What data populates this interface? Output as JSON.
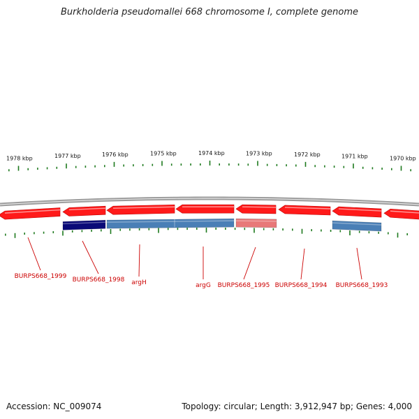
{
  "title": "Burkholderia pseudomallei 668 chromosome I, complete genome",
  "footer": {
    "accession": "Accession: NC_009074",
    "summary": "Topology: circular; Length: 3,912,947 bp; Genes: 4,000"
  },
  "colors": {
    "forward_gene": "#ff1a1a",
    "reverse_gene_dark": "#0a0a78",
    "reverse_gene_blue": "#4a7fb6",
    "reverse_gene_pink": "#e87878",
    "tick": "#1e7a1e",
    "backbone": "#808080",
    "label": "#cc0000"
  },
  "ruler": {
    "unit": "kbp",
    "labels": [
      "1978 kbp",
      "1977 kbp",
      "1976 kbp",
      "1975 kbp",
      "1974 kbp",
      "1973 kbp",
      "1972 kbp",
      "1971 kbp",
      "1970 kbp"
    ]
  },
  "genes": [
    {
      "label": "BURPS668_1999",
      "strand": "forward",
      "color_key": "forward_gene"
    },
    {
      "label": "BURPS668_1998",
      "strand": "reverse",
      "color_key": "reverse_gene_dark"
    },
    {
      "label": "argH",
      "strand": "reverse",
      "color_key": "reverse_gene_blue"
    },
    {
      "label": "argG",
      "strand": "reverse",
      "color_key": "reverse_gene_blue"
    },
    {
      "label": "BURPS668_1995",
      "strand": "reverse",
      "color_key": "reverse_gene_pink"
    },
    {
      "label": "BURPS668_1994",
      "strand": "forward",
      "color_key": "forward_gene"
    },
    {
      "label": "BURPS668_1993",
      "strand": "reverse",
      "color_key": "reverse_gene_blue"
    }
  ]
}
